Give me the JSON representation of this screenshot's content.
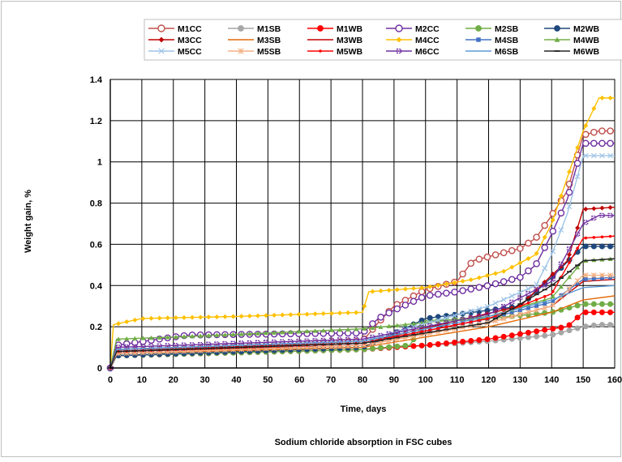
{
  "chart_data": {
    "type": "line",
    "title": "Sodium chloride absorption in FSC cubes",
    "xlabel": "Time, days",
    "ylabel": "Weight gain, %",
    "xlim": [
      0,
      160
    ],
    "ylim": [
      0,
      1.4
    ],
    "xticks": [
      "0",
      "10",
      "20",
      "30",
      "40",
      "50",
      "60",
      "70",
      "80",
      "90",
      "100",
      "110",
      "120",
      "130",
      "140",
      "150",
      "160"
    ],
    "yticks": [
      "0",
      "0.2",
      "0.4",
      "0.6",
      "0.8",
      "1",
      "1.2",
      "1.4"
    ],
    "grid": true,
    "legend_position": "top",
    "series": [
      {
        "name": "M1CC",
        "color": "#c0504d",
        "marker": "circle-open",
        "points": [
          [
            0,
            0
          ],
          [
            2,
            0.08
          ],
          [
            80,
            0.13
          ],
          [
            85,
            0.22
          ],
          [
            90,
            0.3
          ],
          [
            100,
            0.38
          ],
          [
            110,
            0.42
          ],
          [
            115,
            0.52
          ],
          [
            120,
            0.54
          ],
          [
            130,
            0.58
          ],
          [
            135,
            0.63
          ],
          [
            140,
            0.74
          ],
          [
            145,
            0.86
          ],
          [
            150,
            1.13
          ],
          [
            155,
            1.15
          ],
          [
            160,
            1.15
          ]
        ]
      },
      {
        "name": "M1SB",
        "color": "#a6a6a6",
        "marker": "circle",
        "points": [
          [
            0,
            0
          ],
          [
            2,
            0.06
          ],
          [
            80,
            0.09
          ],
          [
            100,
            0.11
          ],
          [
            120,
            0.13
          ],
          [
            140,
            0.16
          ],
          [
            150,
            0.2
          ],
          [
            155,
            0.21
          ],
          [
            160,
            0.21
          ]
        ]
      },
      {
        "name": "M1WB",
        "color": "#ff0000",
        "marker": "circle",
        "points": [
          [
            0,
            0
          ],
          [
            2,
            0.06
          ],
          [
            80,
            0.09
          ],
          [
            100,
            0.11
          ],
          [
            120,
            0.14
          ],
          [
            140,
            0.19
          ],
          [
            145,
            0.2
          ],
          [
            150,
            0.27
          ],
          [
            160,
            0.27
          ]
        ]
      },
      {
        "name": "M2CC",
        "color": "#7030a0",
        "marker": "circle-open",
        "points": [
          [
            0,
            0
          ],
          [
            2,
            0.11
          ],
          [
            20,
            0.15
          ],
          [
            25,
            0.16
          ],
          [
            80,
            0.17
          ],
          [
            85,
            0.24
          ],
          [
            90,
            0.28
          ],
          [
            100,
            0.35
          ],
          [
            110,
            0.37
          ],
          [
            120,
            0.4
          ],
          [
            130,
            0.44
          ],
          [
            135,
            0.5
          ],
          [
            140,
            0.65
          ],
          [
            145,
            0.82
          ],
          [
            150,
            1.09
          ],
          [
            160,
            1.09
          ]
        ]
      },
      {
        "name": "M2SB",
        "color": "#70ad47",
        "marker": "circle",
        "points": [
          [
            0,
            0
          ],
          [
            2,
            0.06
          ],
          [
            80,
            0.09
          ],
          [
            95,
            0.11
          ],
          [
            100,
            0.23
          ],
          [
            120,
            0.24
          ],
          [
            140,
            0.27
          ],
          [
            150,
            0.31
          ],
          [
            160,
            0.31
          ]
        ]
      },
      {
        "name": "M2WB",
        "color": "#1f497d",
        "marker": "circle",
        "points": [
          [
            0,
            0
          ],
          [
            2,
            0.06
          ],
          [
            80,
            0.1
          ],
          [
            85,
            0.13
          ],
          [
            100,
            0.24
          ],
          [
            130,
            0.3
          ],
          [
            140,
            0.44
          ],
          [
            150,
            0.59
          ],
          [
            160,
            0.59
          ]
        ]
      },
      {
        "name": "M3CC",
        "color": "#c00000",
        "marker": "diamond",
        "points": [
          [
            0,
            0
          ],
          [
            2,
            0.09
          ],
          [
            80,
            0.12
          ],
          [
            110,
            0.23
          ],
          [
            130,
            0.3
          ],
          [
            140,
            0.45
          ],
          [
            145,
            0.52
          ],
          [
            150,
            0.77
          ],
          [
            160,
            0.78
          ]
        ]
      },
      {
        "name": "M3SB",
        "color": "#e46c0a",
        "marker": "none",
        "points": [
          [
            0,
            0
          ],
          [
            2,
            0.07
          ],
          [
            80,
            0.1
          ],
          [
            120,
            0.2
          ],
          [
            140,
            0.27
          ],
          [
            150,
            0.33
          ],
          [
            160,
            0.35
          ]
        ]
      },
      {
        "name": "M3WB",
        "color": "#c00000",
        "marker": "none",
        "points": [
          [
            0,
            0
          ],
          [
            2,
            0.08
          ],
          [
            80,
            0.11
          ],
          [
            120,
            0.22
          ],
          [
            140,
            0.3
          ],
          [
            150,
            0.42
          ],
          [
            160,
            0.43
          ]
        ]
      },
      {
        "name": "M4CC",
        "color": "#ffc000",
        "marker": "diamond",
        "points": [
          [
            0,
            0
          ],
          [
            1,
            0.21
          ],
          [
            10,
            0.24
          ],
          [
            40,
            0.25
          ],
          [
            80,
            0.27
          ],
          [
            82,
            0.37
          ],
          [
            100,
            0.39
          ],
          [
            115,
            0.43
          ],
          [
            125,
            0.47
          ],
          [
            135,
            0.55
          ],
          [
            140,
            0.7
          ],
          [
            150,
            1.15
          ],
          [
            155,
            1.31
          ],
          [
            160,
            1.31
          ]
        ]
      },
      {
        "name": "M4SB",
        "color": "#4472c4",
        "marker": "square",
        "points": [
          [
            0,
            0
          ],
          [
            2,
            0.08
          ],
          [
            80,
            0.12
          ],
          [
            120,
            0.24
          ],
          [
            140,
            0.32
          ],
          [
            150,
            0.43
          ],
          [
            160,
            0.44
          ]
        ]
      },
      {
        "name": "M4WB",
        "color": "#70ad47",
        "marker": "triangle",
        "points": [
          [
            0,
            0
          ],
          [
            2,
            0.14
          ],
          [
            20,
            0.15
          ],
          [
            80,
            0.19
          ],
          [
            120,
            0.25
          ],
          [
            140,
            0.34
          ],
          [
            150,
            0.52
          ],
          [
            160,
            0.53
          ]
        ]
      },
      {
        "name": "M5CC",
        "color": "#9dc3e6",
        "marker": "x",
        "points": [
          [
            0,
            0
          ],
          [
            2,
            0.09
          ],
          [
            80,
            0.13
          ],
          [
            120,
            0.3
          ],
          [
            135,
            0.4
          ],
          [
            140,
            0.55
          ],
          [
            145,
            0.75
          ],
          [
            150,
            1.03
          ],
          [
            160,
            1.03
          ]
        ]
      },
      {
        "name": "M5SB",
        "color": "#f4b183",
        "marker": "star",
        "points": [
          [
            0,
            0
          ],
          [
            2,
            0.07
          ],
          [
            80,
            0.11
          ],
          [
            120,
            0.22
          ],
          [
            140,
            0.3
          ],
          [
            150,
            0.45
          ],
          [
            160,
            0.45
          ]
        ]
      },
      {
        "name": "M5WB",
        "color": "#ff0000",
        "marker": "dot",
        "points": [
          [
            0,
            0
          ],
          [
            2,
            0.08
          ],
          [
            80,
            0.12
          ],
          [
            120,
            0.24
          ],
          [
            140,
            0.36
          ],
          [
            150,
            0.63
          ],
          [
            160,
            0.64
          ]
        ]
      },
      {
        "name": "M6CC",
        "color": "#7030a0",
        "marker": "plus",
        "points": [
          [
            0,
            0
          ],
          [
            2,
            0.1
          ],
          [
            80,
            0.14
          ],
          [
            120,
            0.26
          ],
          [
            140,
            0.42
          ],
          [
            150,
            0.7
          ],
          [
            155,
            0.74
          ],
          [
            160,
            0.74
          ]
        ]
      },
      {
        "name": "M6SB",
        "color": "#5b9bd5",
        "marker": "none",
        "points": [
          [
            0,
            0
          ],
          [
            2,
            0.09
          ],
          [
            80,
            0.13
          ],
          [
            120,
            0.25
          ],
          [
            140,
            0.33
          ],
          [
            150,
            0.39
          ],
          [
            160,
            0.4
          ]
        ]
      },
      {
        "name": "M6WB",
        "color": "#262626",
        "marker": "dash",
        "points": [
          [
            0,
            0
          ],
          [
            2,
            0.08
          ],
          [
            80,
            0.12
          ],
          [
            120,
            0.22
          ],
          [
            140,
            0.4
          ],
          [
            150,
            0.52
          ],
          [
            160,
            0.53
          ]
        ]
      }
    ]
  }
}
